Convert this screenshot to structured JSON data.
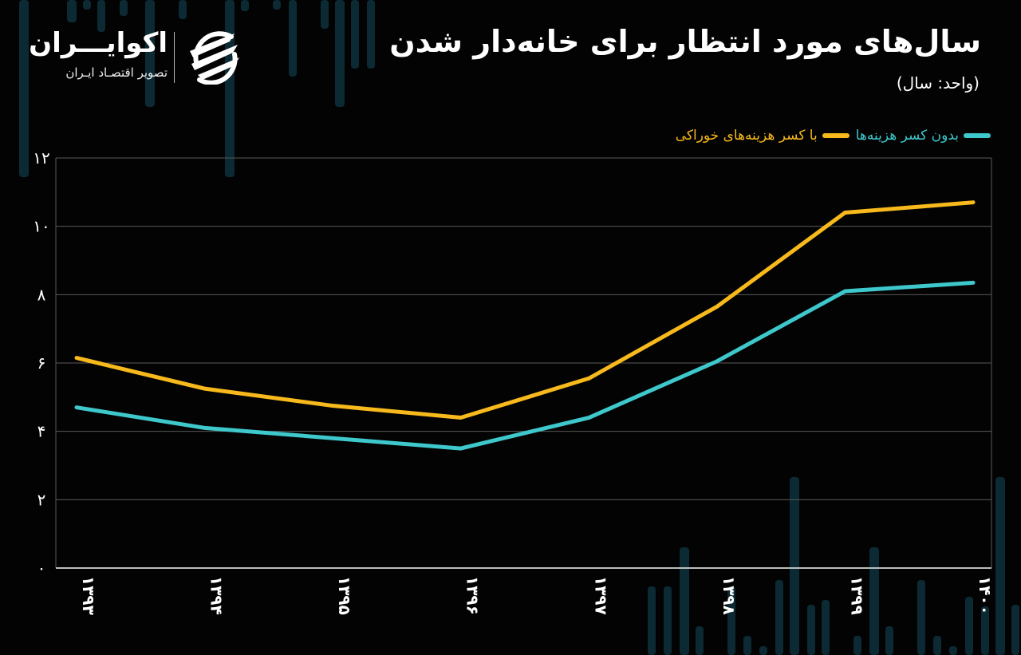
{
  "header": {
    "title": "سال‌های مورد انتظار برای خانه‌دار شدن",
    "unit": "(واحد: سال)"
  },
  "brand": {
    "name": "اکوایـــران",
    "tagline": "تصویر اقتصـاد ایـران",
    "logo_icon": "ecoiran-swoosh-icon"
  },
  "legend": {
    "items": [
      {
        "label": "بدون کسر هزینه‌ها",
        "color": "#3ec8cc"
      },
      {
        "label": "با کسر هزینه‌های خوراکی",
        "color": "#f7b91c"
      }
    ]
  },
  "colors": {
    "background": "#030303",
    "grid": "#5a5a5a",
    "axis": "#bdbdbd",
    "bg_bars": "#0b2a33"
  },
  "chart_data": {
    "type": "line",
    "title": "سال‌های مورد انتظار برای خانه‌دار شدن",
    "subtitle": "(واحد: سال)",
    "xlabel": "",
    "ylabel": "",
    "categories": [
      "۱۳۹۳",
      "۱۳۹۴",
      "۱۳۹۵",
      "۱۳۹۶",
      "۱۳۹۷",
      "۱۳۹۸",
      "۱۳۹۹",
      "۱۴۰۰"
    ],
    "x": [
      1393,
      1394,
      1395,
      1396,
      1397,
      1398,
      1399,
      1400
    ],
    "series": [
      {
        "name": "بدون کسر هزینه‌ها",
        "color": "#3ec8cc",
        "values": [
          4.7,
          4.1,
          3.8,
          3.5,
          4.4,
          6.05,
          8.1,
          8.35
        ]
      },
      {
        "name": "با کسر هزینه‌های خوراکی",
        "color": "#f7b91c",
        "values": [
          6.15,
          5.25,
          4.75,
          4.4,
          5.55,
          7.65,
          10.4,
          10.7
        ]
      }
    ],
    "ylim": [
      0,
      12
    ],
    "yticks": [
      0,
      2,
      4,
      6,
      8,
      10,
      12
    ],
    "ytick_labels": [
      "۰",
      "۲",
      "۴",
      "۶",
      "۸",
      "۱۰",
      "۱۲"
    ],
    "grid": true,
    "legend_position": "top-right"
  }
}
